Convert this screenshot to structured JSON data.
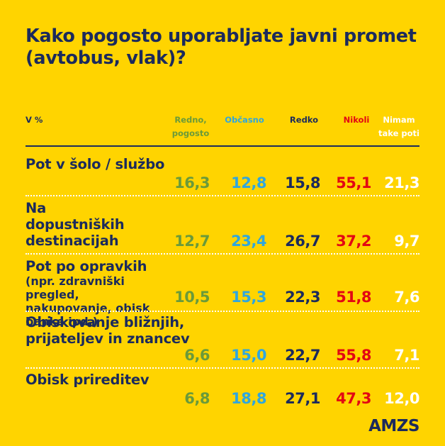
{
  "title": "Kako pogosto uporabljate javni promet (avtobus, vlak)?",
  "colors": {
    "background": "#FFD400",
    "navy": "#1B2A5C",
    "green": "#6A9A3A",
    "blue": "#2FA6DE",
    "red": "#E30613",
    "white": "#FFFFFF"
  },
  "header": {
    "unit": "V %",
    "cols": [
      "Redno, pogosto",
      "Občasno",
      "Redko",
      "Nikoli",
      "Nimam take poti"
    ]
  },
  "chart_data": {
    "type": "table",
    "title": "Kako pogosto uporabljate javni promet (avtobus, vlak)?",
    "unit": "V %",
    "columns": [
      "Redno, pogosto",
      "Občasno",
      "Redko",
      "Nikoli",
      "Nimam take poti"
    ],
    "rows": [
      {
        "label": "Pot v šolo / službo",
        "values": [
          "16,3",
          "12,8",
          "15,8",
          "55,1",
          "21,3"
        ]
      },
      {
        "label": "Na dopustniških destinacijah",
        "values": [
          "12,7",
          "23,4",
          "26,7",
          "37,2",
          "9,7"
        ]
      },
      {
        "label": "Pot po opravkih",
        "sublabel": "(npr. zdravniški pregled, nakupovanje, obisk banke ipd.)",
        "values": [
          "10,5",
          "15,3",
          "22,3",
          "51,8",
          "7,6"
        ]
      },
      {
        "label": "Obiskovanje bližnjih, prijateljev in znancev",
        "values": [
          "6,6",
          "15,0",
          "22,7",
          "55,8",
          "7,1"
        ]
      },
      {
        "label": "Obisk prireditev",
        "values": [
          "6,8",
          "18,8",
          "27,1",
          "47,3",
          "12,0"
        ]
      }
    ]
  },
  "brand": "AMZS"
}
